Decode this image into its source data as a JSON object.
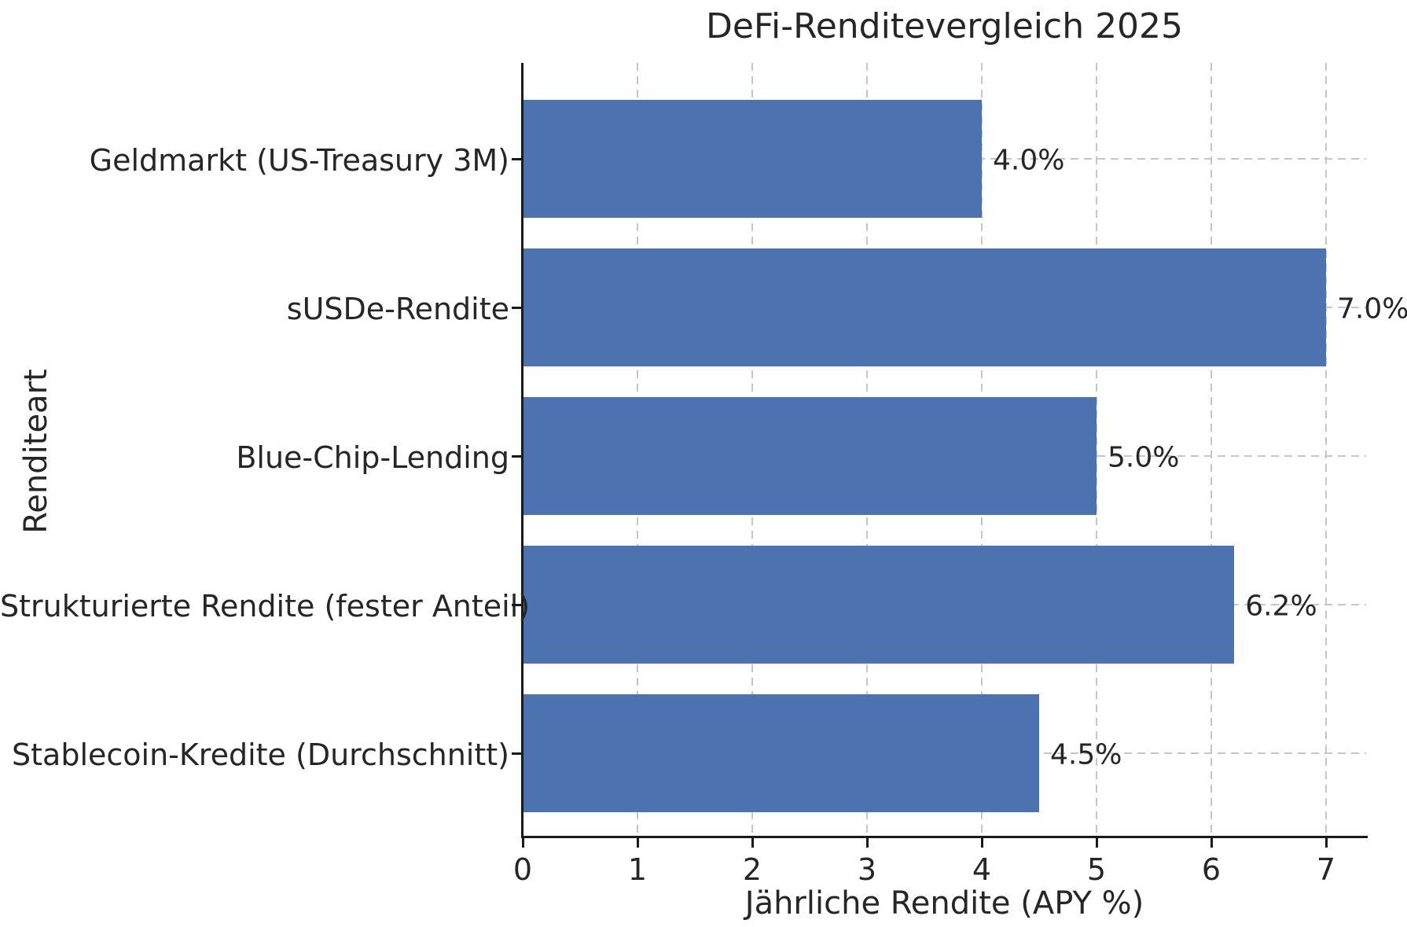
{
  "chart_data": {
    "type": "bar",
    "orientation": "horizontal",
    "title": "DeFi-Renditevergleich 2025",
    "xlabel": "Jährliche Rendite (APY %)",
    "ylabel": "Renditeart",
    "categories": [
      "Geldmarkt (US-Treasury 3M)",
      "sUSDe-Rendite",
      "Blue-Chip-Lending",
      "Strukturierte Rendite (fester Anteil)",
      "Stablecoin-Kredite (Durchschnitt)"
    ],
    "values": [
      4.0,
      7.0,
      5.0,
      6.2,
      4.5
    ],
    "value_labels": [
      "4.0%",
      "7.0%",
      "5.0%",
      "6.2%",
      "4.5%"
    ],
    "x_ticks": [
      0,
      1,
      2,
      3,
      4,
      5,
      6,
      7
    ],
    "xlim": [
      0,
      7.35
    ],
    "grid": "both-dashed",
    "legend": "none",
    "bar_color": "#4c72b0",
    "text_color": "#262626",
    "grid_color": "#c6c6c6",
    "spine_color": "#1a1a1a",
    "background_color": "#ffffff"
  }
}
